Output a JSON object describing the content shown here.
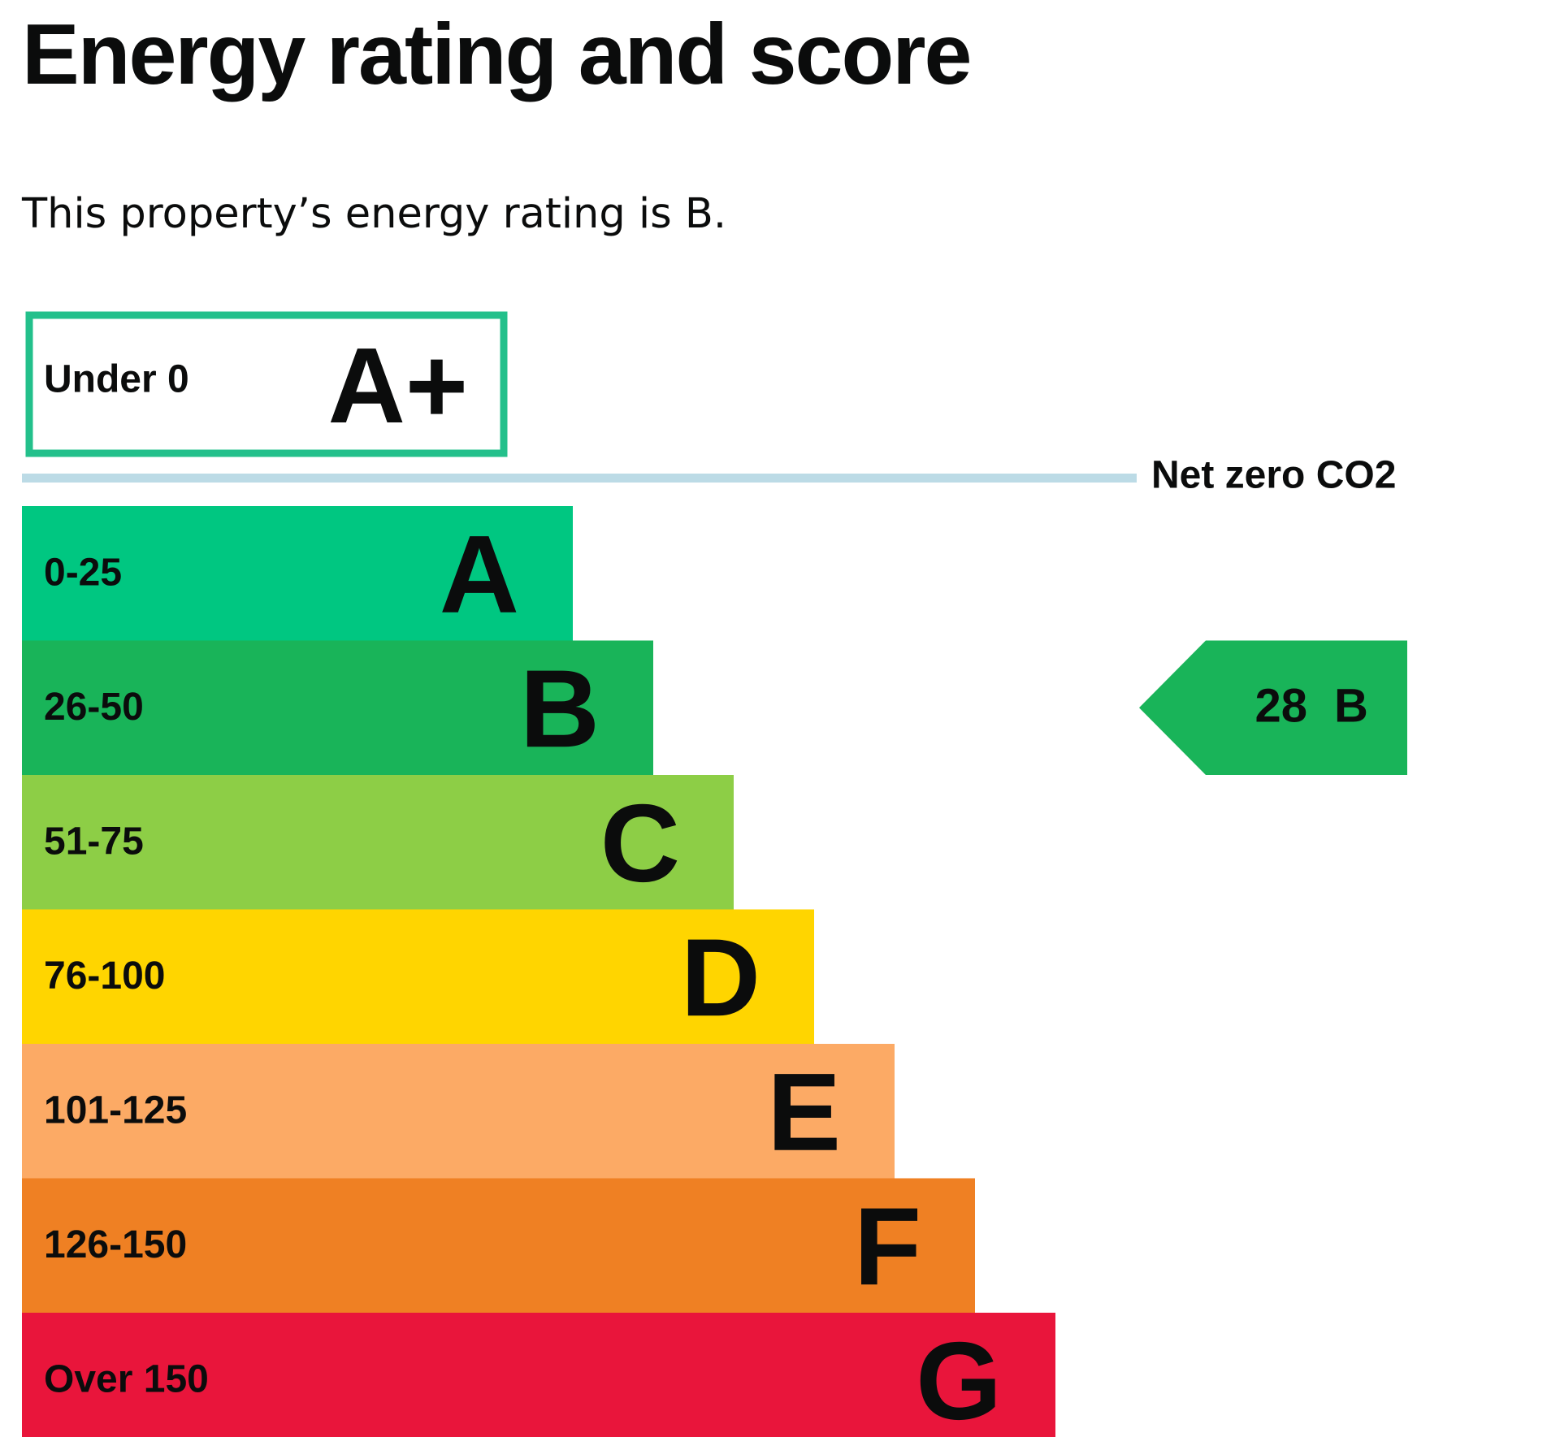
{
  "header": {
    "title": "Energy rating and score",
    "summary": "This property’s energy rating is B."
  },
  "chart_data": {
    "type": "bar",
    "title": "Energy rating and score",
    "scale_top": {
      "range": "Under 0",
      "letter": "A+",
      "color": "#23c08b"
    },
    "net_zero": {
      "label": "Net zero CO2",
      "color": "#bcdbe6"
    },
    "bands": [
      {
        "letter": "A",
        "range": "0-25",
        "color": "#00c781"
      },
      {
        "letter": "B",
        "range": "26-50",
        "color": "#19b459"
      },
      {
        "letter": "C",
        "range": "51-75",
        "color": "#8dce46"
      },
      {
        "letter": "D",
        "range": "76-100",
        "color": "#ffd500"
      },
      {
        "letter": "E",
        "range": "101-125",
        "color": "#fcaa65"
      },
      {
        "letter": "F",
        "range": "126-150",
        "color": "#ef8023"
      },
      {
        "letter": "G",
        "range": "Over 150",
        "color": "#e9153b"
      }
    ],
    "current": {
      "score": 28,
      "score_label": "28",
      "letter": "B",
      "band_index": 1,
      "color": "#19b459"
    }
  }
}
